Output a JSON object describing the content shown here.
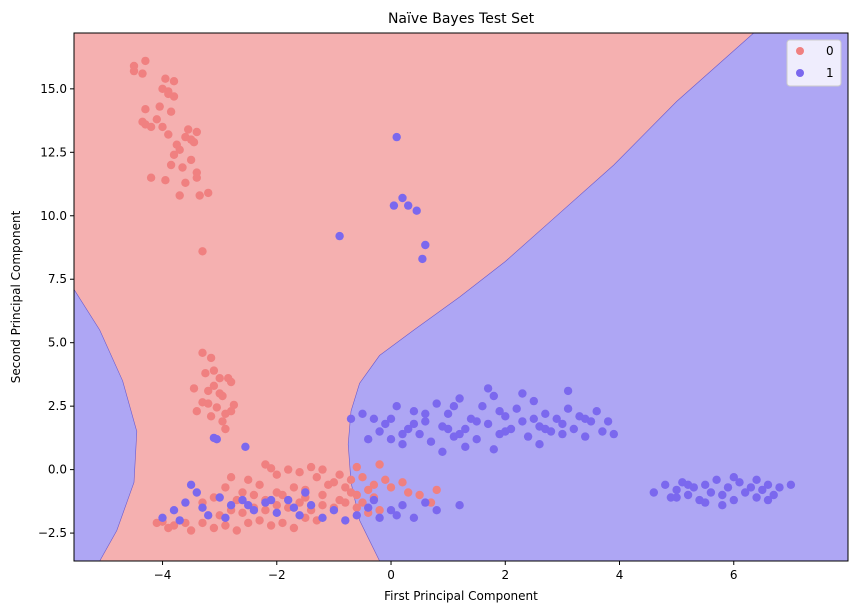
{
  "chart_data": {
    "type": "scatter",
    "title": "Naïve Bayes Test Set",
    "xlabel": "First Principal Component",
    "ylabel": "Second Principal Component",
    "xlim": [
      -5.55,
      8.0
    ],
    "ylim": [
      -3.6,
      17.2
    ],
    "x_ticks": [
      -4,
      -2,
      0,
      2,
      4,
      6
    ],
    "y_ticks": [
      -2.5,
      0.0,
      2.5,
      5.0,
      7.5,
      10.0,
      12.5,
      15.0
    ],
    "x_tick_labels": [
      "−4",
      "−2",
      "0",
      "2",
      "4",
      "6"
    ],
    "y_tick_labels": [
      "−2.5",
      "0.0",
      "2.5",
      "5.0",
      "7.5",
      "10.0",
      "12.5",
      "15.0"
    ],
    "grid": false,
    "legend_position": "top-right",
    "background_regions": [
      {
        "class": "0",
        "color": "#f5b0b0"
      },
      {
        "class": "1",
        "color": "#aea6f4"
      }
    ],
    "series": [
      {
        "name": "0",
        "color": "#f08080",
        "points": [
          [
            -4.5,
            15.9
          ],
          [
            -4.5,
            15.7
          ],
          [
            -4.3,
            16.1
          ],
          [
            -4.35,
            15.6
          ],
          [
            -4.0,
            15.0
          ],
          [
            -3.9,
            14.8
          ],
          [
            -3.8,
            15.3
          ],
          [
            -3.95,
            15.4
          ],
          [
            -4.05,
            14.3
          ],
          [
            -3.85,
            14.1
          ],
          [
            -3.9,
            14.9
          ],
          [
            -3.8,
            14.7
          ],
          [
            -4.3,
            14.2
          ],
          [
            -4.1,
            13.8
          ],
          [
            -4.3,
            13.6
          ],
          [
            -4.2,
            13.5
          ],
          [
            -3.9,
            13.2
          ],
          [
            -4.35,
            13.7
          ],
          [
            -4.0,
            13.5
          ],
          [
            -3.75,
            12.8
          ],
          [
            -3.7,
            12.6
          ],
          [
            -3.5,
            13.0
          ],
          [
            -3.4,
            13.3
          ],
          [
            -3.55,
            13.4
          ],
          [
            -3.6,
            13.1
          ],
          [
            -3.45,
            12.9
          ],
          [
            -3.8,
            12.4
          ],
          [
            -3.85,
            12.0
          ],
          [
            -3.65,
            11.9
          ],
          [
            -3.5,
            12.2
          ],
          [
            -3.4,
            11.5
          ],
          [
            -3.6,
            11.3
          ],
          [
            -3.7,
            10.8
          ],
          [
            -3.35,
            10.8
          ],
          [
            -3.2,
            10.9
          ],
          [
            -3.4,
            11.7
          ],
          [
            -3.95,
            11.4
          ],
          [
            -4.2,
            11.5
          ],
          [
            -3.3,
            8.6
          ],
          [
            -3.3,
            4.6
          ],
          [
            -3.15,
            4.4
          ],
          [
            -3.45,
            3.2
          ],
          [
            -3.2,
            3.1
          ],
          [
            -3.0,
            3.6
          ],
          [
            -2.85,
            3.6
          ],
          [
            -3.1,
            3.3
          ],
          [
            -2.95,
            2.9
          ],
          [
            -3.2,
            2.6
          ],
          [
            -3.4,
            2.3
          ],
          [
            -3.15,
            2.1
          ],
          [
            -2.9,
            2.2
          ],
          [
            -2.8,
            2.3
          ],
          [
            -3.05,
            2.45
          ],
          [
            -3.3,
            2.65
          ],
          [
            -2.95,
            1.9
          ],
          [
            -2.9,
            1.6
          ],
          [
            -3.25,
            3.8
          ],
          [
            -3.1,
            3.9
          ],
          [
            -2.75,
            2.55
          ],
          [
            -3.0,
            3.0
          ],
          [
            -2.8,
            3.45
          ],
          [
            -2.2,
            0.2
          ],
          [
            -2.1,
            0.05
          ],
          [
            -2.0,
            -0.2
          ],
          [
            -1.8,
            0.0
          ],
          [
            -1.6,
            -0.1
          ],
          [
            -1.4,
            0.1
          ],
          [
            -1.3,
            -0.3
          ],
          [
            -1.2,
            0.0
          ],
          [
            -1.0,
            -0.5
          ],
          [
            -0.9,
            -0.2
          ],
          [
            -0.8,
            -0.7
          ],
          [
            -0.7,
            -0.4
          ],
          [
            -0.6,
            0.1
          ],
          [
            -0.5,
            -0.3
          ],
          [
            -0.4,
            -0.8
          ],
          [
            -0.3,
            -0.6
          ],
          [
            -0.2,
            0.2
          ],
          [
            -0.1,
            -0.4
          ],
          [
            0.0,
            -0.7
          ],
          [
            0.2,
            -0.5
          ],
          [
            0.3,
            -0.9
          ],
          [
            0.5,
            -1.0
          ],
          [
            0.8,
            -0.8
          ],
          [
            0.7,
            -1.3
          ],
          [
            -2.8,
            -0.3
          ],
          [
            -2.5,
            -0.4
          ],
          [
            -2.3,
            -0.6
          ],
          [
            -2.0,
            -0.9
          ],
          [
            -1.7,
            -0.7
          ],
          [
            -1.5,
            -1.1
          ],
          [
            -1.2,
            -1.0
          ],
          [
            -0.9,
            -1.2
          ],
          [
            -0.6,
            -1.0
          ],
          [
            -0.3,
            -1.1
          ],
          [
            -4.1,
            -2.1
          ],
          [
            -4.0,
            -2.05
          ],
          [
            -3.9,
            -2.3
          ],
          [
            -3.8,
            -2.2
          ],
          [
            -3.6,
            -2.1
          ],
          [
            -3.5,
            -2.4
          ],
          [
            -3.3,
            -2.1
          ],
          [
            -3.1,
            -2.3
          ],
          [
            -2.9,
            -2.2
          ],
          [
            -2.7,
            -2.4
          ],
          [
            -2.5,
            -2.1
          ],
          [
            -2.3,
            -2.0
          ],
          [
            -2.1,
            -2.2
          ],
          [
            -1.9,
            -2.1
          ],
          [
            -1.7,
            -2.3
          ],
          [
            -1.5,
            -1.9
          ],
          [
            -1.3,
            -2.0
          ],
          [
            -3.0,
            -1.8
          ],
          [
            -2.8,
            -1.6
          ],
          [
            -2.6,
            -1.7
          ],
          [
            -2.4,
            -1.5
          ],
          [
            -2.2,
            -1.6
          ],
          [
            -2.0,
            -1.4
          ],
          [
            -1.8,
            -1.5
          ],
          [
            -1.6,
            -1.3
          ],
          [
            -1.4,
            -1.6
          ],
          [
            -1.2,
            -1.4
          ],
          [
            -1.0,
            -1.5
          ],
          [
            -0.8,
            -1.3
          ],
          [
            -0.6,
            -1.5
          ],
          [
            -0.4,
            -1.7
          ],
          [
            -0.2,
            -1.6
          ],
          [
            -2.6,
            -0.9
          ],
          [
            -2.4,
            -1.0
          ],
          [
            -2.2,
            -1.2
          ],
          [
            -1.9,
            -1.0
          ],
          [
            -1.5,
            -0.8
          ],
          [
            -1.1,
            -0.6
          ],
          [
            -0.7,
            -0.9
          ],
          [
            -0.5,
            -1.3
          ],
          [
            -3.3,
            -1.3
          ],
          [
            -3.1,
            -1.1
          ],
          [
            -2.9,
            -0.7
          ],
          [
            -2.7,
            -1.2
          ]
        ]
      },
      {
        "name": "1",
        "color": "#7b68ee",
        "points": [
          [
            0.1,
            13.1
          ],
          [
            0.2,
            10.7
          ],
          [
            0.05,
            10.4
          ],
          [
            0.3,
            10.4
          ],
          [
            0.45,
            10.2
          ],
          [
            -0.9,
            9.2
          ],
          [
            0.6,
            8.85
          ],
          [
            0.55,
            8.3
          ],
          [
            -3.1,
            1.25
          ],
          [
            -3.05,
            1.2
          ],
          [
            -2.55,
            0.9
          ],
          [
            -0.7,
            2.0
          ],
          [
            -0.5,
            2.2
          ],
          [
            -0.3,
            2.0
          ],
          [
            -0.2,
            1.5
          ],
          [
            -0.1,
            1.8
          ],
          [
            0.0,
            1.2
          ],
          [
            0.1,
            2.5
          ],
          [
            0.2,
            1.0
          ],
          [
            0.3,
            1.6
          ],
          [
            0.4,
            2.3
          ],
          [
            0.5,
            1.4
          ],
          [
            0.6,
            1.9
          ],
          [
            0.7,
            1.1
          ],
          [
            0.8,
            2.6
          ],
          [
            0.9,
            1.7
          ],
          [
            1.0,
            2.2
          ],
          [
            1.1,
            1.3
          ],
          [
            1.2,
            2.8
          ],
          [
            1.3,
            1.6
          ],
          [
            1.4,
            2.0
          ],
          [
            1.5,
            1.2
          ],
          [
            1.6,
            2.5
          ],
          [
            1.7,
            1.8
          ],
          [
            1.8,
            2.9
          ],
          [
            1.9,
            1.4
          ],
          [
            2.0,
            2.1
          ],
          [
            2.1,
            1.6
          ],
          [
            2.2,
            2.4
          ],
          [
            2.3,
            1.9
          ],
          [
            2.4,
            1.3
          ],
          [
            2.5,
            2.7
          ],
          [
            2.6,
            1.7
          ],
          [
            2.7,
            2.2
          ],
          [
            2.8,
            1.5
          ],
          [
            2.9,
            2.0
          ],
          [
            3.0,
            1.8
          ],
          [
            3.1,
            2.4
          ],
          [
            3.2,
            1.6
          ],
          [
            3.3,
            2.1
          ],
          [
            3.4,
            1.3
          ],
          [
            3.5,
            1.9
          ],
          [
            3.6,
            2.3
          ],
          [
            3.7,
            1.5
          ],
          [
            3.8,
            1.9
          ],
          [
            3.9,
            1.4
          ],
          [
            1.1,
            2.5
          ],
          [
            1.7,
            3.2
          ],
          [
            2.3,
            3.0
          ],
          [
            3.1,
            3.1
          ],
          [
            0.9,
            0.7
          ],
          [
            1.3,
            0.9
          ],
          [
            1.8,
            0.8
          ],
          [
            2.6,
            1.0
          ],
          [
            -0.4,
            1.2
          ],
          [
            0.0,
            2.0
          ],
          [
            0.4,
            1.8
          ],
          [
            1.0,
            1.6
          ],
          [
            1.5,
            1.9
          ],
          [
            2.0,
            1.5
          ],
          [
            2.5,
            2.0
          ],
          [
            3.0,
            1.4
          ],
          [
            0.6,
            2.2
          ],
          [
            1.2,
            1.4
          ],
          [
            1.9,
            2.3
          ],
          [
            2.7,
            1.6
          ],
          [
            3.4,
            2.0
          ],
          [
            0.2,
            1.4
          ],
          [
            4.6,
            -0.9
          ],
          [
            4.8,
            -0.6
          ],
          [
            4.9,
            -1.1
          ],
          [
            5.0,
            -0.8
          ],
          [
            5.1,
            -0.5
          ],
          [
            5.2,
            -1.0
          ],
          [
            5.3,
            -0.7
          ],
          [
            5.4,
            -1.2
          ],
          [
            5.5,
            -0.6
          ],
          [
            5.6,
            -0.9
          ],
          [
            5.7,
            -0.4
          ],
          [
            5.8,
            -1.0
          ],
          [
            5.9,
            -0.7
          ],
          [
            6.0,
            -1.2
          ],
          [
            6.1,
            -0.5
          ],
          [
            6.2,
            -0.9
          ],
          [
            6.3,
            -0.7
          ],
          [
            6.4,
            -1.1
          ],
          [
            6.5,
            -0.8
          ],
          [
            6.6,
            -0.6
          ],
          [
            6.7,
            -1.0
          ],
          [
            6.8,
            -0.7
          ],
          [
            7.0,
            -0.6
          ],
          [
            5.5,
            -1.3
          ],
          [
            6.0,
            -0.3
          ],
          [
            5.2,
            -0.6
          ],
          [
            6.4,
            -0.4
          ],
          [
            5.8,
            -1.4
          ],
          [
            6.6,
            -1.2
          ],
          [
            5.0,
            -1.1
          ],
          [
            -4.0,
            -1.9
          ],
          [
            -3.8,
            -1.6
          ],
          [
            -3.6,
            -1.3
          ],
          [
            -3.4,
            -0.9
          ],
          [
            -3.2,
            -1.8
          ],
          [
            -3.0,
            -1.1
          ],
          [
            -2.8,
            -1.4
          ],
          [
            -2.6,
            -1.2
          ],
          [
            -2.4,
            -1.6
          ],
          [
            -2.2,
            -1.3
          ],
          [
            -2.0,
            -1.7
          ],
          [
            -1.8,
            -1.2
          ],
          [
            -1.6,
            -1.8
          ],
          [
            -1.4,
            -1.4
          ],
          [
            -1.2,
            -1.9
          ],
          [
            -1.0,
            -1.6
          ],
          [
            -0.8,
            -2.0
          ],
          [
            -0.6,
            -1.8
          ],
          [
            -0.4,
            -1.5
          ],
          [
            -0.2,
            -1.9
          ],
          [
            0.0,
            -1.6
          ],
          [
            0.2,
            -1.4
          ],
          [
            0.4,
            -1.9
          ],
          [
            0.6,
            -1.3
          ],
          [
            0.8,
            -1.6
          ],
          [
            1.2,
            -1.4
          ],
          [
            -3.7,
            -2.0
          ],
          [
            -3.3,
            -1.5
          ],
          [
            -2.9,
            -1.9
          ],
          [
            -2.5,
            -1.4
          ],
          [
            -2.1,
            -1.2
          ],
          [
            -1.7,
            -1.5
          ],
          [
            -3.5,
            -0.6
          ],
          [
            -1.5,
            -0.9
          ],
          [
            -0.3,
            -1.2
          ],
          [
            0.1,
            -1.8
          ]
        ]
      }
    ]
  }
}
